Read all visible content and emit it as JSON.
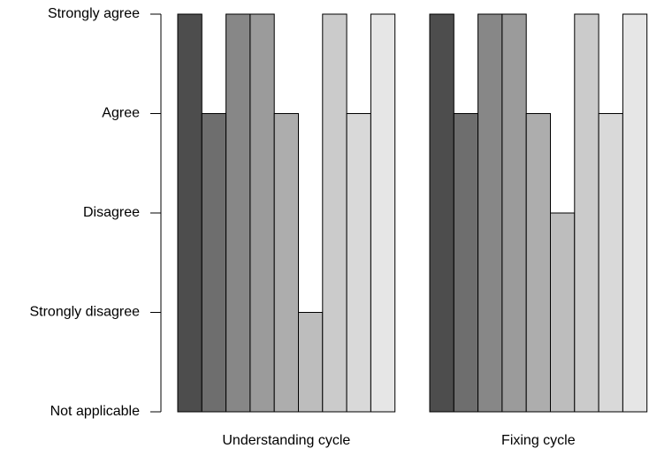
{
  "chart_data": {
    "type": "bar",
    "categories": [
      "Understanding cycle",
      "Fixing cycle"
    ],
    "series": [
      {
        "color": "#4d4d4d",
        "values": [
          4,
          4
        ]
      },
      {
        "color": "#6e6e6e",
        "values": [
          3,
          3
        ]
      },
      {
        "color": "#878787",
        "values": [
          4,
          4
        ]
      },
      {
        "color": "#9b9b9b",
        "values": [
          4,
          4
        ]
      },
      {
        "color": "#adadad",
        "values": [
          3,
          3
        ]
      },
      {
        "color": "#bdbdbd",
        "values": [
          1,
          2
        ]
      },
      {
        "color": "#cbcbcb",
        "values": [
          4,
          4
        ]
      },
      {
        "color": "#d9d9d9",
        "values": [
          3,
          3
        ]
      },
      {
        "color": "#e6e6e6",
        "values": [
          4,
          4
        ]
      }
    ],
    "ylim": [
      0,
      4
    ],
    "yticks": [
      {
        "value": 0,
        "label": "Not applicable"
      },
      {
        "value": 1,
        "label": "Strongly disagree"
      },
      {
        "value": 2,
        "label": "Disagree"
      },
      {
        "value": 3,
        "label": "Agree"
      },
      {
        "value": 4,
        "label": "Strongly agree"
      }
    ]
  }
}
